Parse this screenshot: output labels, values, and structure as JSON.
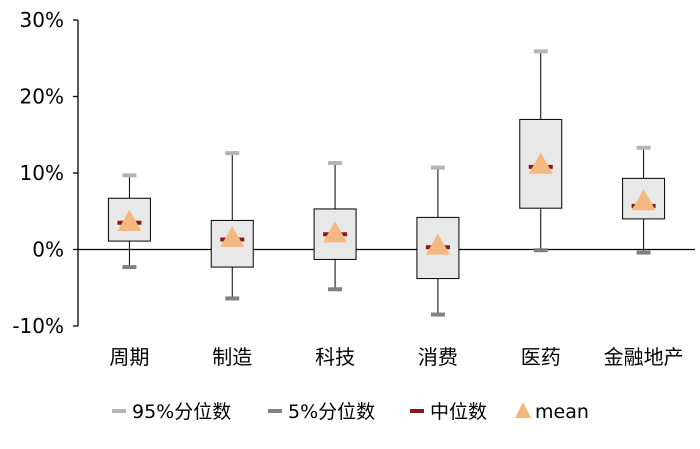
{
  "chart_data": {
    "type": "box",
    "title": "",
    "xlabel": "",
    "ylabel": "",
    "ylim": [
      -0.1,
      0.3
    ],
    "yticks": [
      {
        "value": -0.1,
        "label": "-10%"
      },
      {
        "value": 0.0,
        "label": "0%"
      },
      {
        "value": 0.1,
        "label": "10%"
      },
      {
        "value": 0.2,
        "label": "20%"
      },
      {
        "value": 0.3,
        "label": "30%"
      }
    ],
    "grid": false,
    "legend_position": "bottom",
    "categories": [
      "周期",
      "制造",
      "科技",
      "消费",
      "医药",
      "金融地产"
    ],
    "series": {
      "p95": {
        "name": "95%分位数",
        "color": "#b3b3b3",
        "values": [
          0.097,
          0.126,
          0.113,
          0.107,
          0.259,
          0.133
        ]
      },
      "p5": {
        "name": "5%分位数",
        "color": "#808080",
        "values": [
          -0.023,
          -0.064,
          -0.052,
          -0.085,
          -0.001,
          -0.004
        ]
      },
      "q3": {
        "values": [
          0.067,
          0.038,
          0.053,
          0.042,
          0.17,
          0.093
        ]
      },
      "q1": {
        "values": [
          0.011,
          -0.023,
          -0.013,
          -0.038,
          0.054,
          0.04
        ]
      },
      "median": {
        "name": "中位数",
        "color": "#8b1a1a",
        "values": [
          0.035,
          0.013,
          0.02,
          0.003,
          0.108,
          0.057
        ]
      },
      "mean": {
        "name": "mean",
        "color": "#f2b880",
        "values": [
          0.036,
          0.015,
          0.021,
          0.005,
          0.111,
          0.063
        ]
      }
    },
    "box_fill": "#e8e8e8",
    "box_stroke": "#000000"
  }
}
